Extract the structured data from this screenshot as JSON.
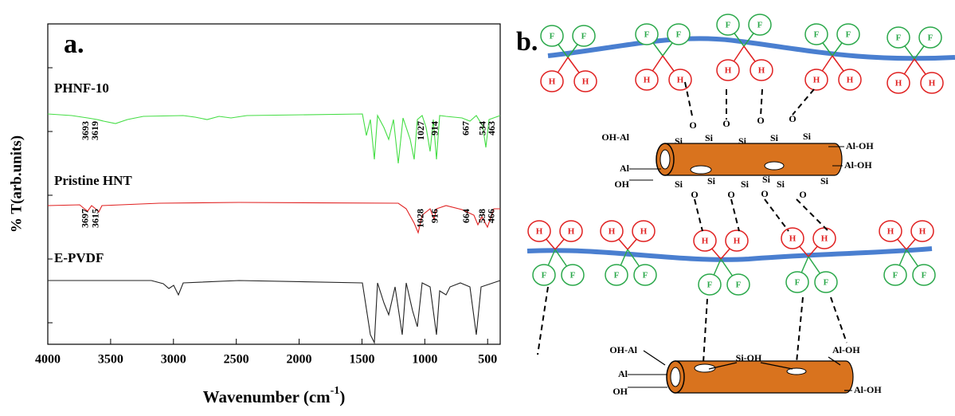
{
  "chart_data": {
    "type": "line",
    "panel_label": "a.",
    "x_label": {
      "text": "Wavenumber (cm",
      "sup": "-1",
      "close": ")"
    },
    "y_label": "% T(arb.units)",
    "xlim": [
      4000,
      400
    ],
    "xticks": [
      4000,
      3500,
      3000,
      2500,
      2000,
      1500,
      1000,
      500
    ],
    "series": [
      {
        "name": "PHNF-10",
        "color": "#44dd44",
        "peaks": [
          3693,
          3619,
          1027,
          914,
          667,
          534,
          463
        ]
      },
      {
        "name": "Pristine HNT",
        "color": "#e02020",
        "peaks": [
          3697,
          3615,
          1028,
          916,
          664,
          538,
          466
        ]
      },
      {
        "name": "E-PVDF",
        "color": "#222222",
        "peaks": []
      }
    ]
  },
  "diagram": {
    "panel_label": "b.",
    "top_chain_atoms": [
      "F",
      "F",
      "H",
      "H",
      "F",
      "F",
      "H",
      "H",
      "F",
      "F",
      "H",
      "H",
      "F",
      "F",
      "H",
      "H",
      "F",
      "F",
      "H",
      "H"
    ],
    "bottom_chain_atoms": [
      "H",
      "H",
      "F",
      "F",
      "H",
      "H",
      "F",
      "F",
      "H",
      "H",
      "F",
      "F",
      "H",
      "H",
      "F",
      "F",
      "H",
      "H",
      "F",
      "F"
    ],
    "silicate_top": [
      "O",
      "O",
      "O",
      "O",
      "Si",
      "Si",
      "Si",
      "Si",
      "Si"
    ],
    "silicate_bottom": [
      "Si",
      "Si",
      "Si",
      "Si",
      "Si",
      "Si",
      "O",
      "O",
      "O",
      "O"
    ],
    "tube_top_labels": [
      "OH-Al",
      "Al-OH",
      "Al-OH",
      "Al",
      "OH"
    ],
    "tube_bottom_labels": [
      "OH-Al",
      "Al-OH",
      "Al-OH",
      "Al",
      "OH",
      "Si-OH"
    ]
  }
}
